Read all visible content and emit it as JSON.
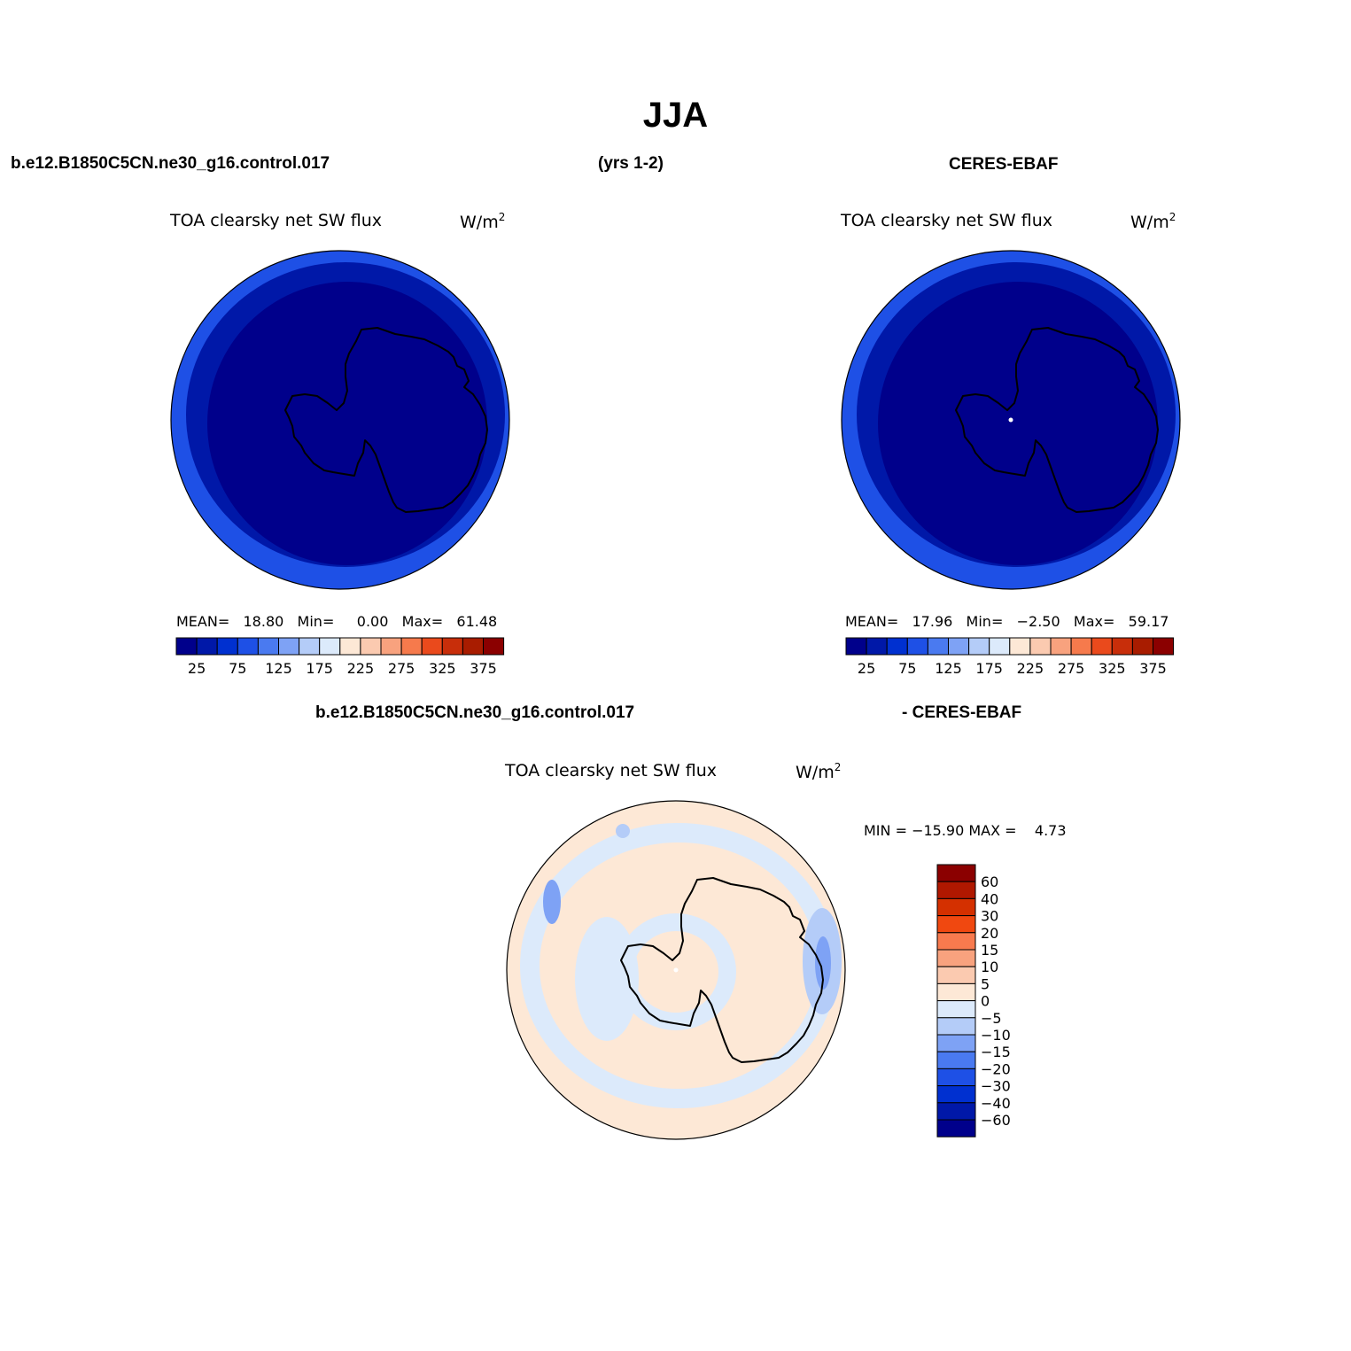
{
  "main_title": "JJA",
  "header": {
    "case_name": "b.e12.B1850C5CN.ne30_g16.control.017",
    "years": "(yrs 1-2)",
    "obs_name": "CERES-EBAF"
  },
  "diff_header": {
    "case_name": "b.e12.B1850C5CN.ne30_g16.control.017",
    "obs_name": "- CERES-EBAF"
  },
  "variable_label": "TOA clearsky net SW flux",
  "units_base": "W/m",
  "units_exp": "2",
  "panels": {
    "model": {
      "stats": "MEAN=   18.80   Min=     0.00   Max=   61.48",
      "mean": 18.8,
      "min": 0.0,
      "max": 61.48
    },
    "obs": {
      "stats": "MEAN=   17.96   Min=   −2.50   Max=   59.17",
      "mean": 17.96,
      "min": -2.5,
      "max": 59.17
    },
    "diff": {
      "stats": "MIN = −15.90 MAX =    4.73",
      "min": -15.9,
      "max": 4.73
    }
  },
  "colorbar_abs": {
    "colors": [
      "#00008b",
      "#0018a8",
      "#0030d0",
      "#1e50e6",
      "#4a7af0",
      "#7ea2f5",
      "#b4ccf8",
      "#dceafb",
      "#fde8d6",
      "#fbcab0",
      "#f8a27e",
      "#f67a4c",
      "#ea4a1c",
      "#c82e0a",
      "#a81c00",
      "#8b0000"
    ],
    "tick_labels": [
      "25",
      "75",
      "125",
      "175",
      "225",
      "275",
      "325",
      "375"
    ]
  },
  "colorbar_diff": {
    "colors": [
      "#8b0000",
      "#b01800",
      "#d43000",
      "#f04810",
      "#f87a4e",
      "#f8a27e",
      "#fbcab0",
      "#fde8d6",
      "#dceafb",
      "#b4ccf8",
      "#7ea2f5",
      "#4a7af0",
      "#1e50e6",
      "#0030d0",
      "#0018a8",
      "#00008b"
    ],
    "tick_labels": [
      "60",
      "40",
      "30",
      "20",
      "15",
      "10",
      "5",
      "0",
      "−5",
      "−10",
      "−15",
      "−20",
      "−30",
      "−40",
      "−60"
    ]
  },
  "map_colors": {
    "abs_outer": "#1e50e6",
    "abs_mid": "#0018a8",
    "abs_inner": "#00008b",
    "diff_bg": "#fde8d6",
    "diff_neg5": "#dceafb",
    "diff_neg10": "#b4ccf8",
    "diff_neg15": "#7ea2f5",
    "diff_neg20": "#4a7af0",
    "coast": "#000000"
  }
}
